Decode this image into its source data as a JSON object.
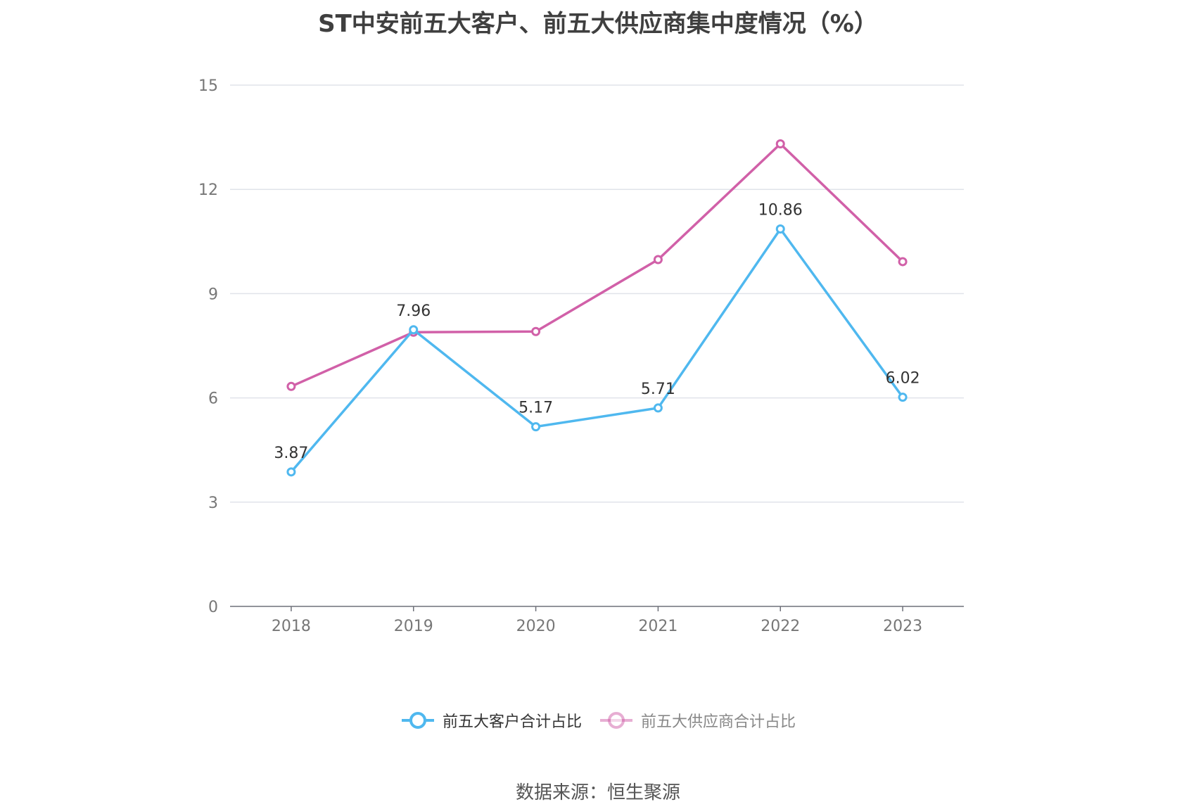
{
  "chart_data": {
    "type": "line",
    "title": "ST中安前五大客户、前五大供应商集中度情况（%）",
    "categories": [
      "2018",
      "2019",
      "2020",
      "2021",
      "2022",
      "2023"
    ],
    "ylim": [
      0,
      15
    ],
    "yticks": [
      "0",
      "3",
      "6",
      "9",
      "12",
      "15"
    ],
    "grid": true,
    "legend_position": "bottom-center",
    "series": [
      {
        "name": "前五大客户合计占比",
        "color": "#4fb8ef",
        "values": [
          3.87,
          7.96,
          5.17,
          5.71,
          10.86,
          6.02
        ],
        "labels": [
          "3.87",
          "7.96",
          "5.17",
          "5.71",
          "10.86",
          "6.02"
        ]
      },
      {
        "name": "前五大供应商合计占比",
        "color": "#d160a8",
        "values": [
          6.33,
          7.89,
          7.91,
          9.98,
          13.31,
          9.92
        ]
      }
    ]
  },
  "source": "数据来源：恒生聚源"
}
